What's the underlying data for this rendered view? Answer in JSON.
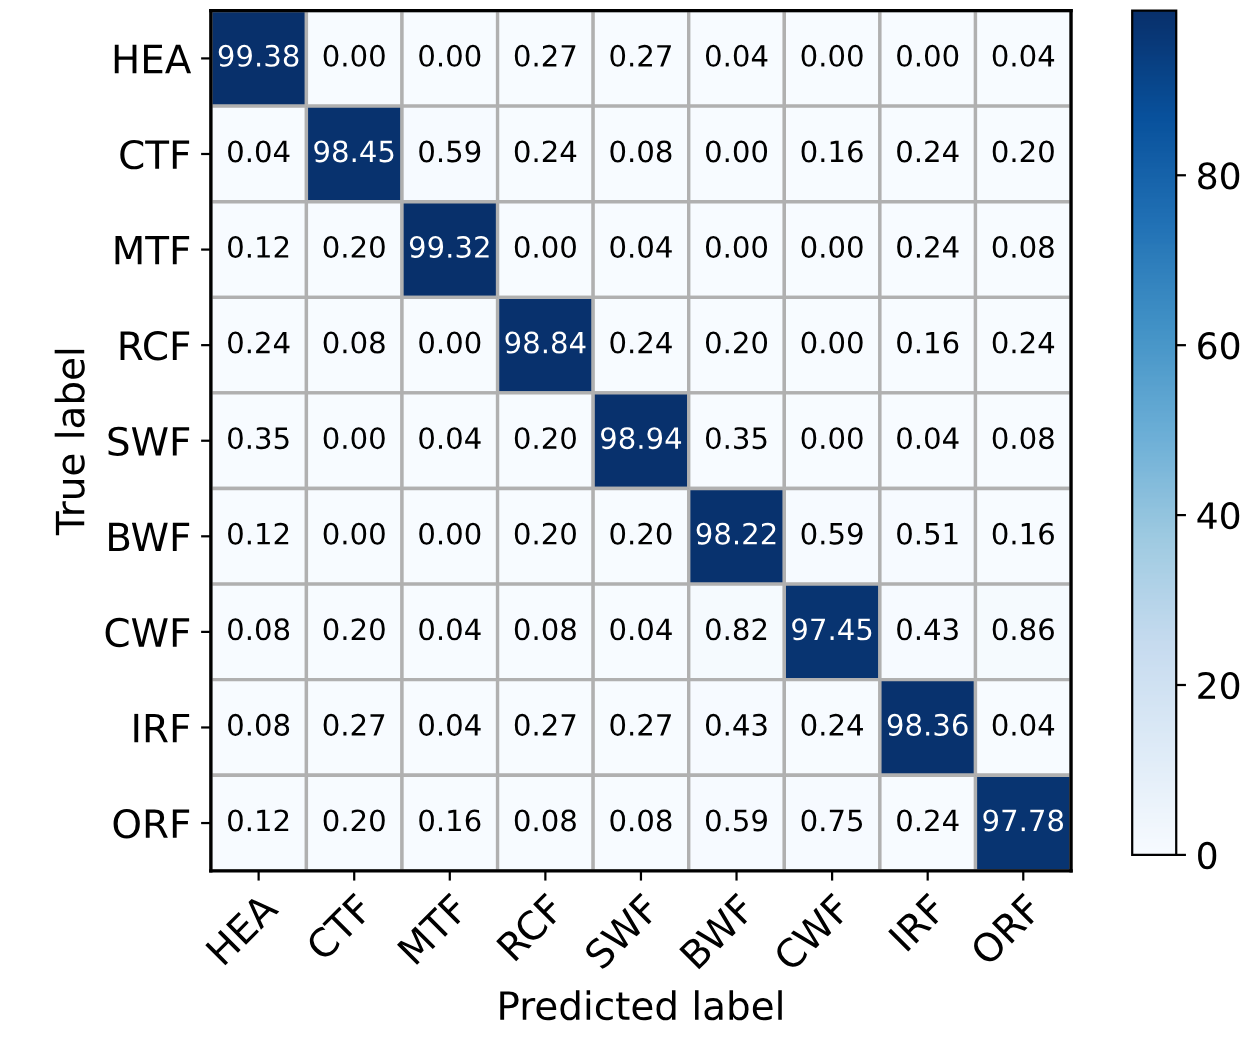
{
  "chart_data": {
    "type": "heatmap",
    "xlabel": "Predicted label",
    "ylabel": "True label",
    "categories": [
      "HEA",
      "CTF",
      "MTF",
      "RCF",
      "SWF",
      "BWF",
      "CWF",
      "IRF",
      "ORF"
    ],
    "y_categories": [
      "HEA",
      "CTF",
      "MTF",
      "RCF",
      "SWF",
      "BWF",
      "CWF",
      "IRF",
      "ORF"
    ],
    "cells": [
      [
        99.38,
        0.0,
        0.0,
        0.27,
        0.27,
        0.04,
        0.0,
        0.0,
        0.04
      ],
      [
        0.04,
        98.45,
        0.59,
        0.24,
        0.08,
        0.0,
        0.16,
        0.24,
        0.2
      ],
      [
        0.12,
        0.2,
        99.32,
        0.0,
        0.04,
        0.0,
        0.0,
        0.24,
        0.08
      ],
      [
        0.24,
        0.08,
        0.0,
        98.84,
        0.24,
        0.2,
        0.0,
        0.16,
        0.24
      ],
      [
        0.35,
        0.0,
        0.04,
        0.2,
        98.94,
        0.35,
        0.0,
        0.04,
        0.08
      ],
      [
        0.12,
        0.0,
        0.0,
        0.2,
        0.2,
        98.22,
        0.59,
        0.51,
        0.16
      ],
      [
        0.08,
        0.2,
        0.04,
        0.08,
        0.04,
        0.82,
        97.45,
        0.43,
        0.86
      ],
      [
        0.08,
        0.27,
        0.04,
        0.27,
        0.27,
        0.43,
        0.24,
        98.36,
        0.04
      ],
      [
        0.12,
        0.2,
        0.16,
        0.08,
        0.08,
        0.59,
        0.75,
        0.24,
        97.78
      ]
    ],
    "cell_labels": [
      [
        "99.38",
        "0.00",
        "0.00",
        "0.27",
        "0.27",
        "0.04",
        "0.00",
        "0.00",
        "0.04"
      ],
      [
        "0.04",
        "98.45",
        "0.59",
        "0.24",
        "0.08",
        "0.00",
        "0.16",
        "0.24",
        "0.20"
      ],
      [
        "0.12",
        "0.20",
        "99.32",
        "0.00",
        "0.04",
        "0.00",
        "0.00",
        "0.24",
        "0.08"
      ],
      [
        "0.24",
        "0.08",
        "0.00",
        "98.84",
        "0.24",
        "0.20",
        "0.00",
        "0.16",
        "0.24"
      ],
      [
        "0.35",
        "0.00",
        "0.04",
        "0.20",
        "98.94",
        "0.35",
        "0.00",
        "0.04",
        "0.08"
      ],
      [
        "0.12",
        "0.00",
        "0.00",
        "0.20",
        "0.20",
        "98.22",
        "0.59",
        "0.51",
        "0.16"
      ],
      [
        "0.08",
        "0.20",
        "0.04",
        "0.08",
        "0.04",
        "0.82",
        "97.45",
        "0.43",
        "0.86"
      ],
      [
        "0.08",
        "0.27",
        "0.04",
        "0.27",
        "0.27",
        "0.43",
        "0.24",
        "98.36",
        "0.04"
      ],
      [
        "0.12",
        "0.20",
        "0.16",
        "0.08",
        "0.08",
        "0.59",
        "0.75",
        "0.24",
        "97.78"
      ]
    ],
    "clim": [
      0,
      99.38
    ],
    "cticks": [
      0,
      20,
      40,
      60,
      80
    ]
  }
}
